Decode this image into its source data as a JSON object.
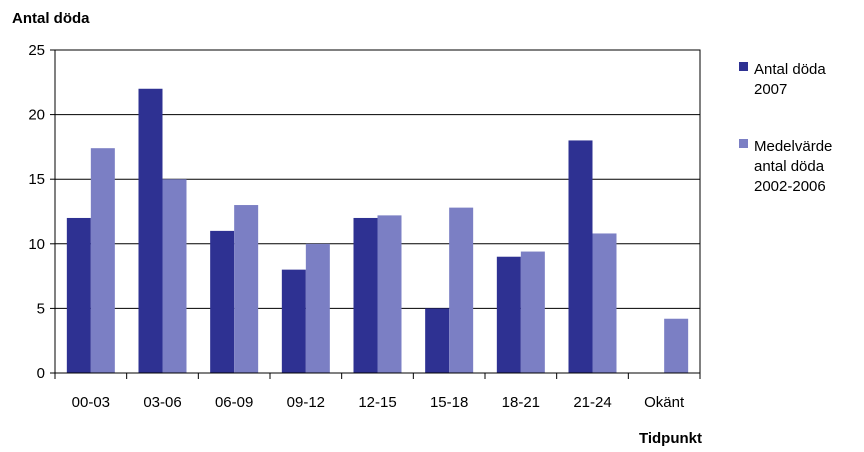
{
  "chart_data": {
    "type": "bar",
    "ylabel": "Antal döda",
    "xlabel": "Tidpunkt",
    "categories": [
      "00-03",
      "03-06",
      "06-09",
      "09-12",
      "12-15",
      "15-18",
      "18-21",
      "21-24",
      "Okänt"
    ],
    "ylim": [
      0,
      25
    ],
    "yticks": [
      0,
      5,
      10,
      15,
      20,
      25
    ],
    "grid": true,
    "legend_position": "right",
    "series": [
      {
        "name": "Antal döda 2007",
        "legend_lines": [
          "Antal döda",
          "2007"
        ],
        "color": "#2e3192",
        "values": [
          12,
          22,
          11,
          8,
          12,
          5,
          9,
          18,
          null
        ]
      },
      {
        "name": "Medelvärde antal döda 2002-2006",
        "legend_lines": [
          "Medelvärde",
          "antal döda",
          "2002-2006"
        ],
        "color": "#7b7fc4",
        "values": [
          17.4,
          15,
          13,
          10,
          12.2,
          12.8,
          9.4,
          10.8,
          4.2
        ]
      }
    ]
  }
}
